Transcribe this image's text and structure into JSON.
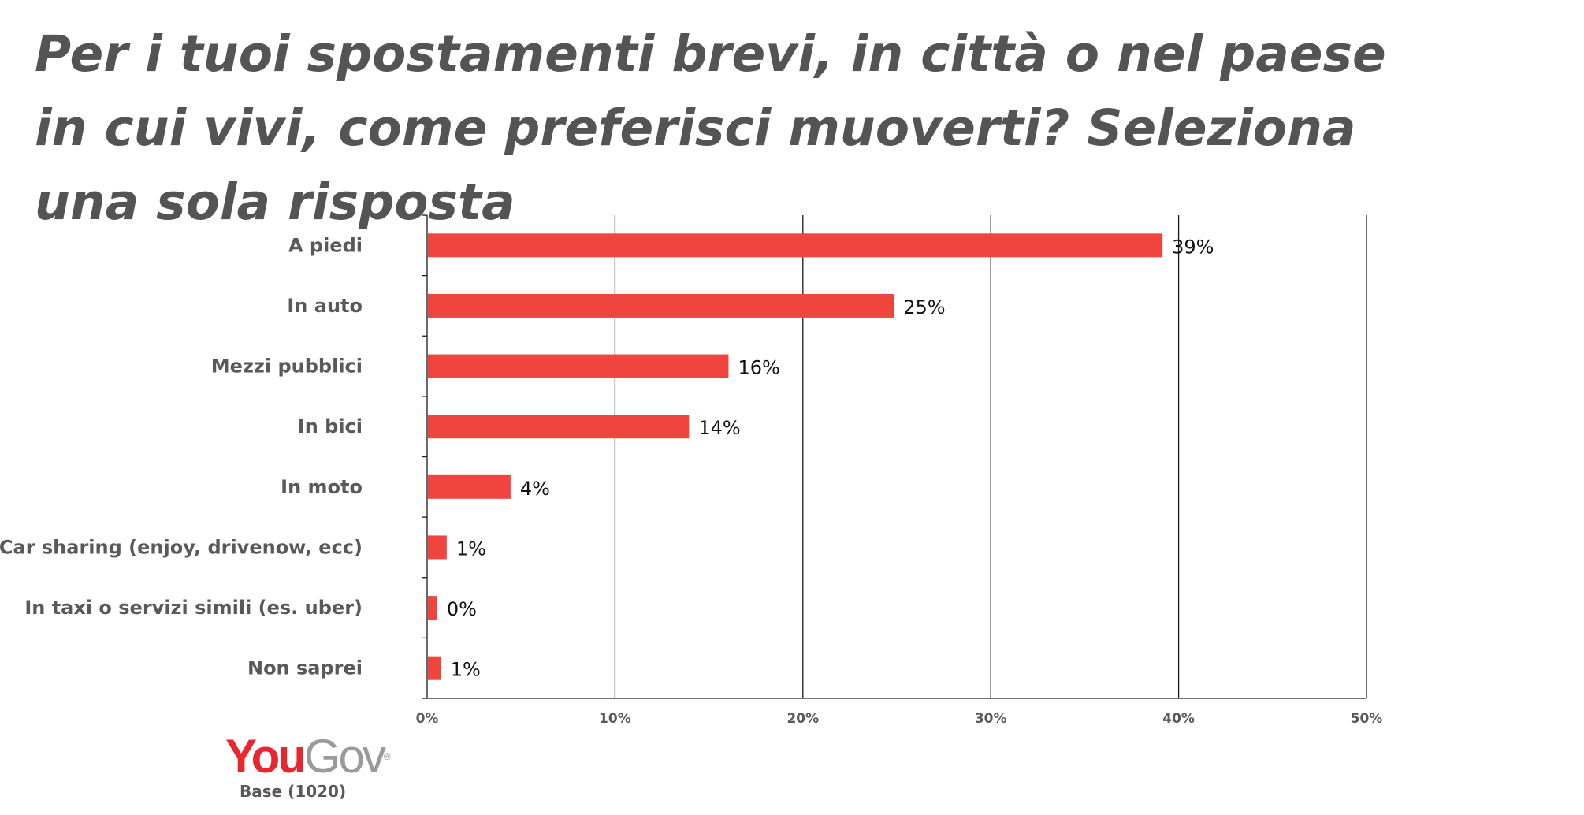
{
  "title": "Per i tuoi spostamenti brevi, in città o nel paese in cui vivi, come preferisci muoverti? Seleziona una sola risposta",
  "chart_data": {
    "type": "bar",
    "orientation": "horizontal",
    "categories": [
      "A piedi",
      "In auto",
      "Mezzi pubblici",
      "In bici",
      "In moto",
      "Car sharing (enjoy, drivenow, ecc)",
      "In taxi o servizi simili (es. uber)",
      "Non saprei"
    ],
    "values": [
      39,
      25,
      16,
      14,
      4,
      1,
      0,
      1
    ],
    "data_labels": [
      "39%",
      "25%",
      "16%",
      "14%",
      "4%",
      "1%",
      "0%",
      "1%"
    ],
    "bar_values": [
      39.1,
      24.8,
      16.0,
      13.9,
      4.4,
      1.0,
      0.5,
      0.7
    ],
    "xlim": [
      0,
      50
    ],
    "xticks": [
      0,
      10,
      20,
      30,
      40,
      50
    ],
    "xtick_labels": [
      "0%",
      "10%",
      "20%",
      "30%",
      "40%",
      "50%"
    ],
    "grid": true,
    "bar_color": "#f0453e"
  },
  "brand": {
    "logo_you": "You",
    "logo_gov": "Gov",
    "logo_mark": "®",
    "base": "Base (1020)"
  }
}
